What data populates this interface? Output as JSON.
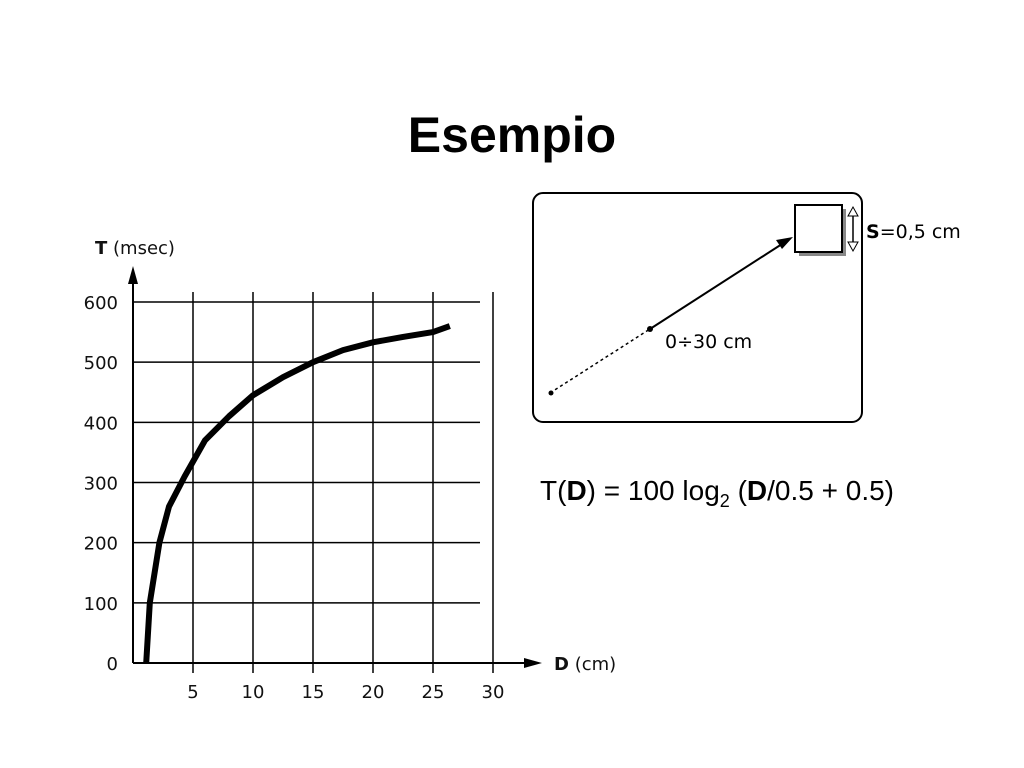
{
  "title": "Esempio",
  "chart_data": {
    "type": "line",
    "ylabel_symbol": "T",
    "ylabel_unit": "(msec)",
    "xlabel_symbol": "D",
    "xlabel_unit": "(cm)",
    "x": [
      1.1,
      1.4,
      2.2,
      3,
      4.3,
      6,
      8,
      10,
      12.5,
      15,
      17.5,
      20,
      22.5,
      25,
      26.4
    ],
    "values": [
      0,
      100,
      200,
      260,
      310,
      370,
      410,
      445,
      475,
      500,
      520,
      533,
      542,
      550,
      560
    ],
    "color": "#000000",
    "xlim": [
      0,
      30
    ],
    "xticks": [
      5,
      10,
      15,
      20,
      25,
      30
    ],
    "ylim": [
      0,
      600
    ],
    "yticks": [
      0,
      100,
      200,
      300,
      400,
      500,
      600
    ],
    "grid": true
  },
  "diagram": {
    "distance_label": "0÷30 cm",
    "size_symbol": "S",
    "size_text": "=0,5 cm"
  },
  "formula": [
    "T(",
    "D",
    ") = 100 log",
    "2",
    " (",
    "D",
    "/0.5 + 0.5)"
  ]
}
